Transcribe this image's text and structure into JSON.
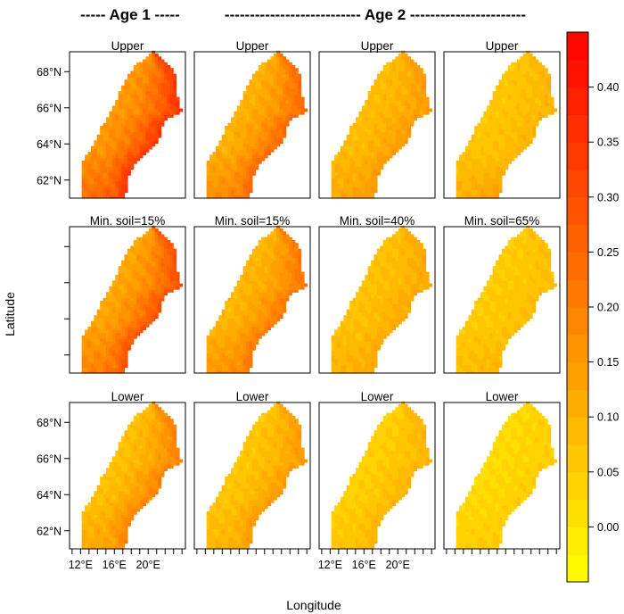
{
  "header": {
    "age1": "----- Age 1 -----",
    "age2": "--------------------------- Age 2 -----------------------"
  },
  "chart_data": {
    "type": "heatmap",
    "xlabel": "Longitude",
    "ylabel": "Latitude",
    "x_ticks": [
      "12°E",
      "16°E",
      "20°E"
    ],
    "y_ticks": [
      "62°N",
      "64°N",
      "66°N",
      "68°N"
    ],
    "panels": [
      {
        "row": 1,
        "col": 1,
        "title": "Upper",
        "coast_max": 0.35,
        "inland_max": 0.15,
        "south_max": 0.3
      },
      {
        "row": 1,
        "col": 2,
        "title": "Upper",
        "coast_max": 0.25,
        "inland_max": 0.1,
        "south_max": 0.22
      },
      {
        "row": 1,
        "col": 3,
        "title": "Upper",
        "coast_max": 0.15,
        "inland_max": 0.08,
        "south_max": 0.15
      },
      {
        "row": 1,
        "col": 4,
        "title": "Upper",
        "coast_max": 0.1,
        "inland_max": 0.06,
        "south_max": 0.14
      },
      {
        "row": 2,
        "col": 1,
        "title": "Min. soil=15%",
        "coast_max": 0.3,
        "inland_max": 0.12,
        "south_max": 0.25
      },
      {
        "row": 2,
        "col": 2,
        "title": "Min. soil=15%",
        "coast_max": 0.22,
        "inland_max": 0.09,
        "south_max": 0.2
      },
      {
        "row": 2,
        "col": 3,
        "title": "Min. soil=40%",
        "coast_max": 0.12,
        "inland_max": 0.07,
        "south_max": 0.12
      },
      {
        "row": 2,
        "col": 4,
        "title": "Min. soil=65%",
        "coast_max": 0.08,
        "inland_max": 0.05,
        "south_max": 0.1
      },
      {
        "row": 3,
        "col": 1,
        "title": "Lower",
        "coast_max": 0.2,
        "inland_max": 0.07,
        "south_max": 0.15
      },
      {
        "row": 3,
        "col": 2,
        "title": "Lower",
        "coast_max": 0.15,
        "inland_max": 0.06,
        "south_max": 0.12
      },
      {
        "row": 3,
        "col": 3,
        "title": "Lower",
        "coast_max": 0.1,
        "inland_max": 0.04,
        "south_max": 0.08
      },
      {
        "row": 3,
        "col": 4,
        "title": "Lower",
        "coast_max": 0.05,
        "inland_max": 0.02,
        "south_max": 0.06
      }
    ],
    "colorbar": {
      "min": -0.05,
      "max": 0.45,
      "step": 0.025,
      "ticks": [
        "0.00",
        "0.05",
        "0.10",
        "0.15",
        "0.20",
        "0.25",
        "0.30",
        "0.35",
        "0.40"
      ],
      "tick_values": [
        0.0,
        0.05,
        0.1,
        0.15,
        0.2,
        0.25,
        0.3,
        0.35,
        0.4
      ],
      "colors": [
        "#FFFF00",
        "#FF0000"
      ]
    },
    "grid": false
  }
}
